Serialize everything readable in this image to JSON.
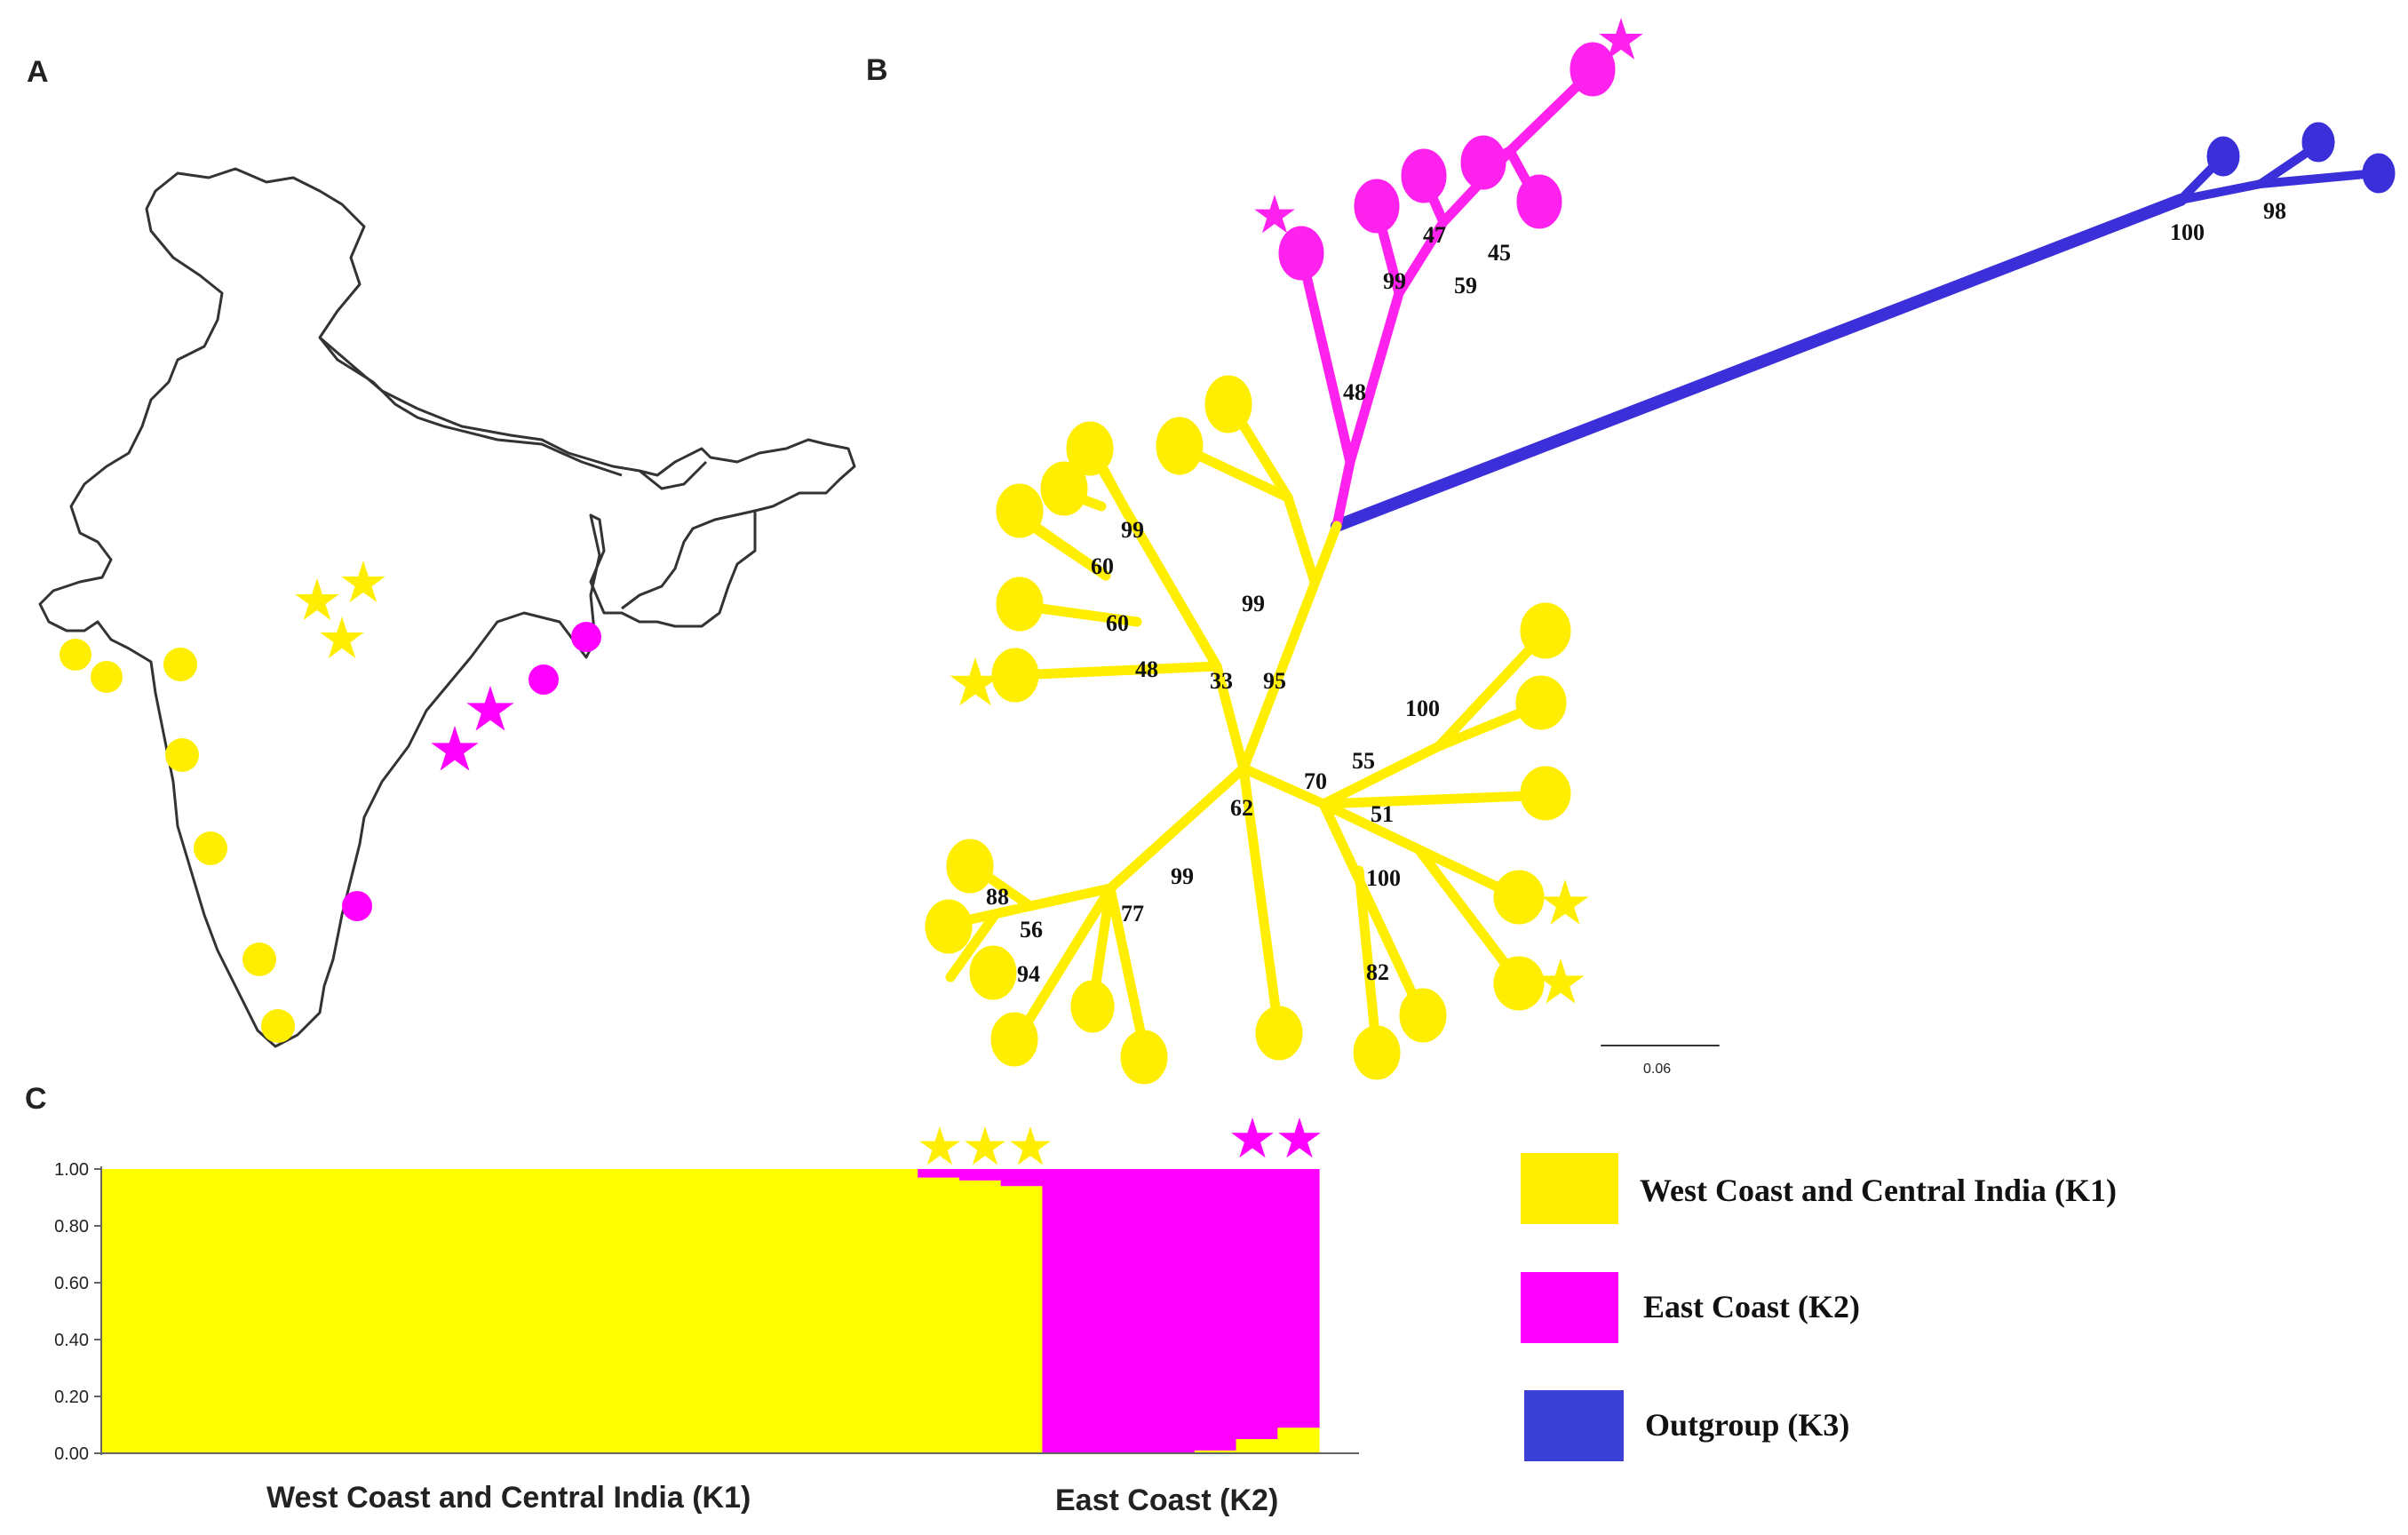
{
  "panels": {
    "a": "A",
    "b": "B",
    "c": "C"
  },
  "colors": {
    "k1": "#ffff00",
    "k2": "#ff00ff",
    "k3": "#3b40d6",
    "tree_k1": "#ffee00",
    "tree_k2": "#ff22ee",
    "tree_k3": "#3a2fd8"
  },
  "tree": {
    "bootstrap": [
      "47",
      "45",
      "99",
      "59",
      "48",
      "100",
      "98",
      "99",
      "60",
      "60",
      "48",
      "99",
      "33",
      "95",
      "100",
      "55",
      "70",
      "51",
      "62",
      "99",
      "88",
      "56",
      "77",
      "94",
      "100",
      "82"
    ],
    "scale_label": "0.06"
  },
  "chart_data": {
    "type": "bar",
    "stacked": true,
    "yticks": [
      "1.00",
      "0.80",
      "0.60",
      "0.40",
      "0.20",
      "0.00"
    ],
    "ylim": [
      0,
      1
    ],
    "groups": [
      "West Coast and Central India (K1)",
      "East Coast (K2)"
    ],
    "series": [
      {
        "name": "West Coast and Central India (K1)",
        "values": [
          1,
          1,
          1,
          1,
          1,
          1,
          1,
          1,
          1,
          1,
          1,
          1,
          1,
          1,
          1,
          1,
          1,
          1,
          1,
          1,
          1,
          1,
          1,
          1,
          1,
          1,
          1,
          1,
          1,
          1,
          1,
          1,
          1,
          1,
          1,
          1,
          1,
          1,
          1,
          1,
          1,
          1,
          1,
          1,
          1,
          1,
          1,
          1,
          1,
          1,
          1,
          1,
          1,
          1,
          1,
          1,
          1,
          1,
          1,
          0.97,
          0.97,
          0.97,
          0.96,
          0.96,
          0.96,
          0.94,
          0.94,
          0.94,
          0,
          0,
          0,
          0,
          0,
          0,
          0,
          0,
          0,
          0,
          0,
          0.01,
          0.01,
          0.01,
          0.05,
          0.05,
          0.05,
          0.09,
          0.09,
          0.09
        ]
      },
      {
        "name": "East Coast (K2)",
        "values": [
          0,
          0,
          0,
          0,
          0,
          0,
          0,
          0,
          0,
          0,
          0,
          0,
          0,
          0,
          0,
          0,
          0,
          0,
          0,
          0,
          0,
          0,
          0,
          0,
          0,
          0,
          0,
          0,
          0,
          0,
          0,
          0,
          0,
          0,
          0,
          0,
          0,
          0,
          0,
          0,
          0,
          0,
          0,
          0,
          0,
          0,
          0,
          0,
          0,
          0,
          0,
          0,
          0,
          0,
          0,
          0,
          0,
          0,
          0,
          0.03,
          0.03,
          0.03,
          0.04,
          0.04,
          0.04,
          0.06,
          0.06,
          0.06,
          1,
          1,
          1,
          1,
          1,
          1,
          1,
          1,
          1,
          1,
          1,
          0.99,
          0.99,
          0.99,
          0.95,
          0.95,
          0.95,
          0.91,
          0.91,
          0.91
        ]
      }
    ]
  },
  "legend": [
    {
      "label": "West Coast and Central India (K1)",
      "color": "#ffee00"
    },
    {
      "label": "East Coast (K2)",
      "color": "#ff00ff"
    },
    {
      "label": "Outgroup (K3)",
      "color": "#3b40d6"
    }
  ]
}
